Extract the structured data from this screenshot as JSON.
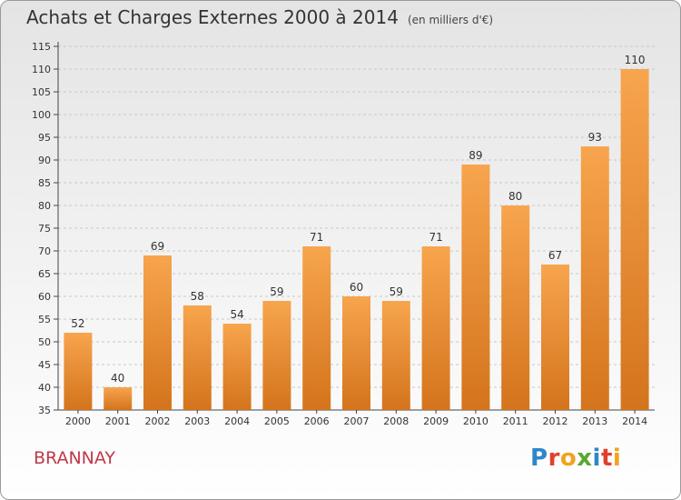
{
  "title": "Achats et Charges Externes 2000 à 2014",
  "unit": "(en milliers d'€)",
  "commune": "BRANNAY",
  "logo": {
    "text": "Proxiti",
    "letters": [
      {
        "char": "P",
        "color": "#2f86c8"
      },
      {
        "char": "r",
        "color": "#e0412c"
      },
      {
        "char": "o",
        "color": "#f2a21c"
      },
      {
        "char": "x",
        "color": "#5aa832"
      },
      {
        "char": "i",
        "color": "#2f86c8"
      },
      {
        "char": "t",
        "color": "#e0412c"
      },
      {
        "char": "i",
        "color": "#f2a21c"
      }
    ]
  },
  "colors": {
    "bar_light": "#f7a54e",
    "bar_dark": "#d4741c",
    "grid": "#c8c8c8",
    "axis": "#444444"
  },
  "chart_data": {
    "type": "bar",
    "categories": [
      "2000",
      "2001",
      "2002",
      "2003",
      "2004",
      "2005",
      "2006",
      "2007",
      "2008",
      "2009",
      "2010",
      "2011",
      "2012",
      "2013",
      "2014"
    ],
    "values": [
      52,
      40,
      69,
      58,
      54,
      59,
      71,
      60,
      59,
      71,
      89,
      80,
      67,
      93,
      110
    ],
    "ylim": [
      35,
      115
    ],
    "yticks": [
      35,
      40,
      45,
      50,
      55,
      60,
      65,
      70,
      75,
      80,
      85,
      90,
      95,
      100,
      105,
      110,
      115
    ],
    "grid": true,
    "data_labels": true
  }
}
